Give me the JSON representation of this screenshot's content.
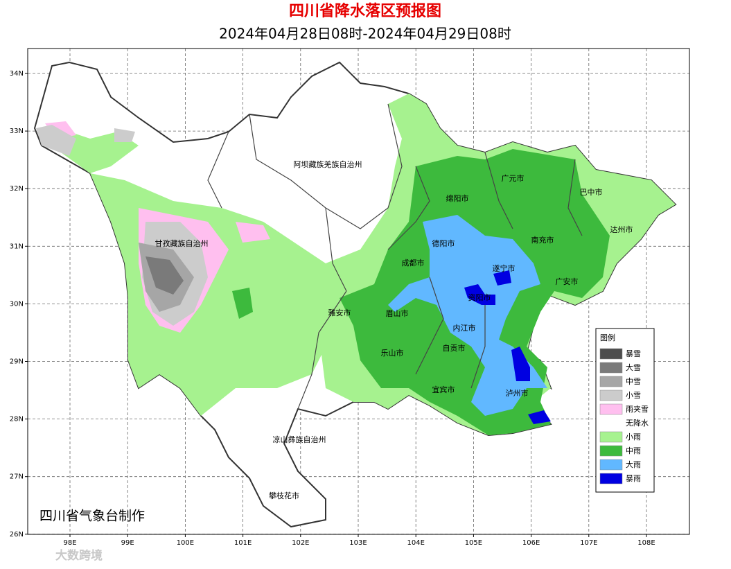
{
  "title": "四川省降水落区预报图",
  "subtitle": "2024年04月28日08时-2024年04月29日08时",
  "lon_ticks": [
    {
      "value": 98,
      "label": "98E"
    },
    {
      "value": 99,
      "label": "99E"
    },
    {
      "value": 100,
      "label": "100E"
    },
    {
      "value": 101,
      "label": "101E"
    },
    {
      "value": 102,
      "label": "102E"
    },
    {
      "value": 103,
      "label": "103E"
    },
    {
      "value": 104,
      "label": "104E"
    },
    {
      "value": 105,
      "label": "105E"
    },
    {
      "value": 106,
      "label": "106E"
    },
    {
      "value": 107,
      "label": "107E"
    },
    {
      "value": 108,
      "label": "108E"
    }
  ],
  "lat_ticks": [
    {
      "value": 34,
      "label": "34N"
    },
    {
      "value": 33,
      "label": "33N"
    },
    {
      "value": 32,
      "label": "32N"
    },
    {
      "value": 31,
      "label": "31N"
    },
    {
      "value": 30,
      "label": "30N"
    },
    {
      "value": 29,
      "label": "29N"
    },
    {
      "value": 28,
      "label": "28N"
    },
    {
      "value": 27,
      "label": "27N"
    },
    {
      "value": 26,
      "label": "26N"
    }
  ],
  "cities": [
    "阿坝藏族羌族自治州",
    "广元市",
    "巴中市",
    "绵阳市",
    "达州市",
    "甘孜藏族自治州",
    "德阳市",
    "南充市",
    "成都市",
    "遂宁市",
    "广安市",
    "资阳市",
    "雅安市",
    "眉山市",
    "内江市",
    "乐山市",
    "自贡市",
    "宜宾市",
    "泸州市",
    "凉山彝族自治州",
    "攀枝花市"
  ],
  "legend": {
    "title": "图例",
    "items": [
      {
        "name": "暴雪",
        "color": "#4d4d4d"
      },
      {
        "name": "大雪",
        "color": "#7a7a7a"
      },
      {
        "name": "中雪",
        "color": "#a6a6a6"
      },
      {
        "name": "小雪",
        "color": "#cccccc"
      },
      {
        "name": "雨夹雪",
        "color": "#ffbfef"
      },
      {
        "name": "无降水",
        "color": "#ffffff"
      },
      {
        "name": "小雨",
        "color": "#a6f28f"
      },
      {
        "name": "中雨",
        "color": "#3dba3d"
      },
      {
        "name": "大雨",
        "color": "#61b8ff"
      },
      {
        "name": "暴雨",
        "color": "#0000e1"
      }
    ]
  },
  "credit": "四川省气象台制作",
  "watermark": "大数跨境"
}
